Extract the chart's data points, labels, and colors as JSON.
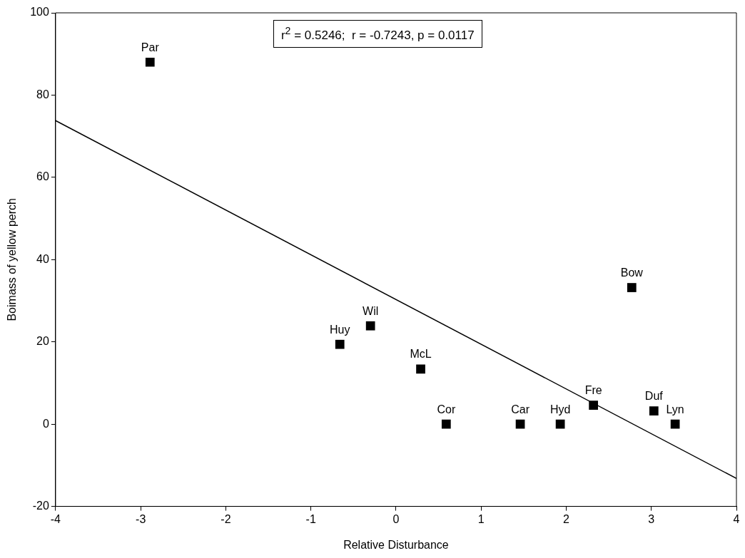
{
  "chart_data": {
    "type": "scatter",
    "xlabel": "Relative Disturbance",
    "ylabel": "Boimass of yellow perch",
    "xlim": [
      -4,
      4
    ],
    "xticks": [
      -4,
      -3,
      -2,
      -1,
      0,
      1,
      2,
      3,
      4
    ],
    "ylim": [
      -20,
      100
    ],
    "yticks": [
      -20,
      0,
      20,
      40,
      60,
      80,
      100
    ],
    "legend": false,
    "series": [
      {
        "type": "scatter",
        "marker": "square",
        "color": "#000000",
        "x": [
          -2.89,
          -0.66,
          -0.3,
          0.29,
          0.59,
          1.46,
          1.93,
          2.32,
          2.77,
          3.03,
          3.28
        ],
        "values": [
          88,
          19.4,
          23.9,
          13.4,
          0,
          0,
          0,
          4.6,
          33.2,
          3.2,
          0
        ]
      },
      {
        "type": "line",
        "marker": "none",
        "color": "#000000",
        "x": [
          -4,
          4
        ],
        "values": [
          73.8,
          -13.2
        ]
      }
    ],
    "annotations": [
      "r$^{2}$ = 0.5246;  r = -0.7243, p = 0.0117",
      {
        "text": "Par",
        "x": -2.89,
        "y": 88
      },
      {
        "text": "Huy",
        "x": -0.66,
        "y": 19.4
      },
      {
        "text": "Wil",
        "x": -0.3,
        "y": 23.9
      },
      {
        "text": "McL",
        "x": 0.29,
        "y": 13.4
      },
      {
        "text": "Cor",
        "x": 0.59,
        "y": 0
      },
      {
        "text": "Car",
        "x": 1.46,
        "y": 0
      },
      {
        "text": "Hyd",
        "x": 1.93,
        "y": 0
      },
      {
        "text": "Fre",
        "x": 2.32,
        "y": 4.6
      },
      {
        "text": "Bow",
        "x": 2.77,
        "y": 33.2
      },
      {
        "text": "Duf",
        "x": 3.03,
        "y": 3.2
      },
      {
        "text": "Lyn",
        "x": 3.28,
        "y": 0
      }
    ]
  }
}
